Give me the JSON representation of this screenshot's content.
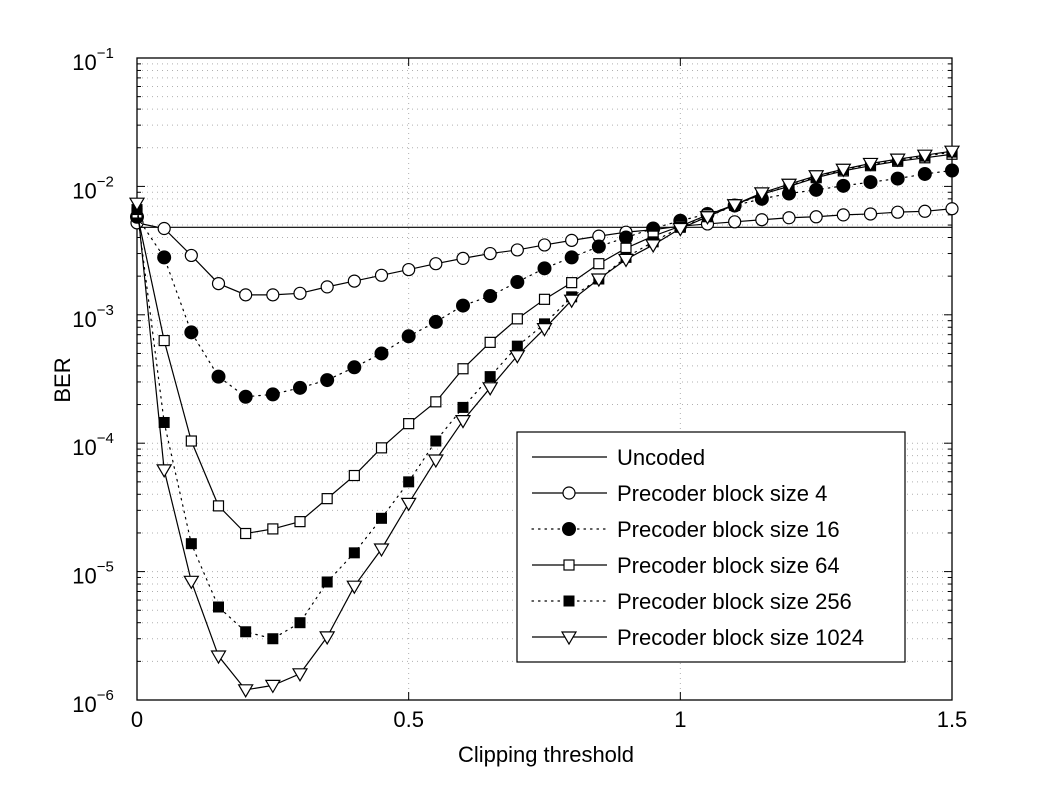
{
  "chart_data": {
    "type": "line",
    "title": "",
    "xlabel": "Clipping threshold",
    "ylabel": "BER",
    "xlim": [
      0,
      1.5
    ],
    "ylim": [
      1e-06,
      0.1
    ],
    "yscale": "log",
    "grid": true,
    "legend_position": "lower-right",
    "x_ticks": [
      {
        "value": 0,
        "label": "0"
      },
      {
        "value": 0.5,
        "label": "0.5"
      },
      {
        "value": 1,
        "label": "1"
      },
      {
        "value": 1.5,
        "label": "1.5"
      }
    ],
    "y_ticks": [
      {
        "value": 1e-06,
        "mantissa": "10",
        "exponent": "−6"
      },
      {
        "value": 1e-05,
        "mantissa": "10",
        "exponent": "−5"
      },
      {
        "value": 0.0001,
        "mantissa": "10",
        "exponent": "−4"
      },
      {
        "value": 0.001,
        "mantissa": "10",
        "exponent": "−3"
      },
      {
        "value": 0.01,
        "mantissa": "10",
        "exponent": "−2"
      },
      {
        "value": 0.1,
        "mantissa": "10",
        "exponent": "−1"
      }
    ],
    "x": [
      0,
      0.05,
      0.1,
      0.15,
      0.2,
      0.25,
      0.3,
      0.35,
      0.4,
      0.45,
      0.5,
      0.55,
      0.6,
      0.65,
      0.7,
      0.75,
      0.8,
      0.85,
      0.9,
      0.95,
      1.0,
      1.05,
      1.1,
      1.15,
      1.2,
      1.25,
      1.3,
      1.35,
      1.4,
      1.45,
      1.5
    ],
    "series": [
      {
        "name": "Uncoded",
        "line": "solid",
        "marker": "none",
        "x": [
          0,
          1.5
        ],
        "values": [
          0.0048,
          0.0048
        ]
      },
      {
        "name": "Precoder block size 4",
        "line": "solid",
        "marker": "circle-open",
        "values": [
          0.0052,
          0.0047,
          0.0029,
          0.00175,
          0.00143,
          0.00143,
          0.00147,
          0.00165,
          0.00183,
          0.00203,
          0.00225,
          0.0025,
          0.00275,
          0.003,
          0.0032,
          0.0035,
          0.0038,
          0.0041,
          0.0044,
          0.0046,
          0.0049,
          0.0051,
          0.0053,
          0.0055,
          0.0057,
          0.0058,
          0.006,
          0.0061,
          0.0063,
          0.0064,
          0.0067
        ]
      },
      {
        "name": "Precoder block size 16",
        "line": "dotted",
        "marker": "circle-filled",
        "values": [
          0.0058,
          0.0028,
          0.00073,
          0.00033,
          0.00023,
          0.00024,
          0.00027,
          0.00031,
          0.00039,
          0.0005,
          0.00068,
          0.00088,
          0.00118,
          0.0014,
          0.0018,
          0.0023,
          0.0028,
          0.0034,
          0.004,
          0.0047,
          0.0054,
          0.0061,
          0.0071,
          0.008,
          0.0088,
          0.0094,
          0.0101,
          0.0108,
          0.0115,
          0.0125,
          0.0133
        ]
      },
      {
        "name": "Precoder block size 64",
        "line": "solid",
        "marker": "square-open",
        "values": [
          0.0062,
          0.00063,
          0.000104,
          3.25e-05,
          1.98e-05,
          2.15e-05,
          2.45e-05,
          3.7e-05,
          5.6e-05,
          9.2e-05,
          0.000142,
          0.00021,
          0.00038,
          0.00061,
          0.00093,
          0.00132,
          0.00178,
          0.0025,
          0.0033,
          0.0041,
          0.0049,
          0.006,
          0.0072,
          0.0087,
          0.01,
          0.0117,
          0.0132,
          0.0145,
          0.0157,
          0.0167,
          0.0178
        ]
      },
      {
        "name": "Precoder block size 256",
        "line": "dotted",
        "marker": "square-filled",
        "values": [
          0.0066,
          0.000145,
          1.65e-05,
          5.3e-06,
          3.4e-06,
          3e-06,
          4e-06,
          8.3e-06,
          1.4e-05,
          2.6e-05,
          5e-05,
          0.000104,
          0.00019,
          0.00033,
          0.00057,
          0.00085,
          0.00138,
          0.0019,
          0.0028,
          0.0037,
          0.0048,
          0.0058,
          0.0071,
          0.0087,
          0.0101,
          0.0119,
          0.0135,
          0.0148,
          0.016,
          0.0172,
          0.0185
        ]
      },
      {
        "name": "Precoder block size 1024",
        "line": "solid",
        "marker": "triangle-down-open",
        "values": [
          0.0074,
          6.2e-05,
          8.4e-06,
          2.2e-06,
          1.2e-06,
          1.3e-06,
          1.6e-06,
          3.1e-06,
          7.7e-06,
          1.5e-05,
          3.4e-05,
          7.4e-05,
          0.00015,
          0.00027,
          0.00048,
          0.00078,
          0.0013,
          0.0019,
          0.0027,
          0.0035,
          0.0047,
          0.0058,
          0.0072,
          0.0089,
          0.0104,
          0.0121,
          0.0136,
          0.0151,
          0.0163,
          0.0175,
          0.0188
        ]
      }
    ]
  }
}
